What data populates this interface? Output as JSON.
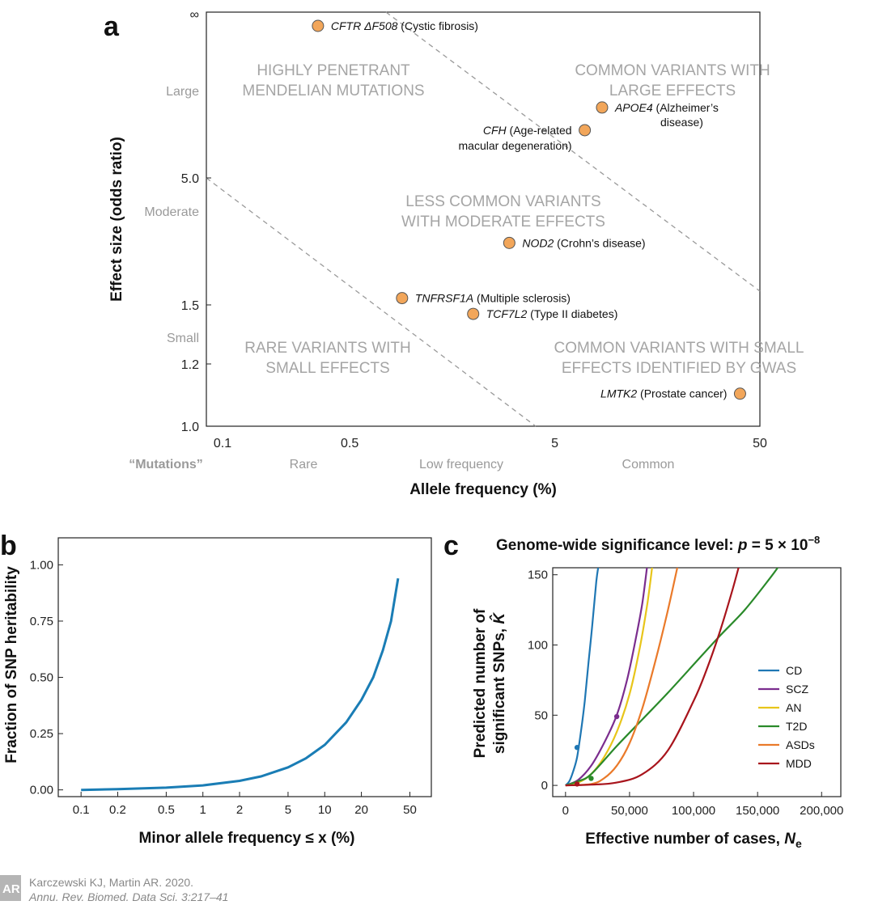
{
  "citation": {
    "line1": "Karczewski KJ, Martin AR. 2020.",
    "line2": "Annu. Rev. Biomed. Data Sci. 3:217–41",
    "logo": "AR"
  },
  "chart_data": [
    {
      "panel": "a",
      "type": "scatter",
      "xlabel": "Allele frequency (%)",
      "ylabel": "Effect size (odds ratio)",
      "x_scale": "log",
      "xlim": [
        0.1,
        50
      ],
      "x_ticks": [
        "0.1",
        "0.5",
        "5",
        "50"
      ],
      "y_ticks": [
        "∞",
        "5.0",
        "1.5",
        "1.2",
        "1.0"
      ],
      "y_categories": [
        "Large",
        "Moderate",
        "Small"
      ],
      "x_categories": [
        "“Mutations”",
        "Rare",
        "Low frequency",
        "Common"
      ],
      "regions": [
        {
          "lines": [
            "HIGHLY PENETRANT",
            "MENDELIAN MUTATIONS"
          ]
        },
        {
          "lines": [
            "COMMON VARIANTS WITH",
            "LARGE EFFECTS"
          ]
        },
        {
          "lines": [
            "LESS COMMON VARIANTS",
            "WITH MODERATE EFFECTS"
          ]
        },
        {
          "lines": [
            "RARE VARIANTS WITH",
            "SMALL EFFECTS"
          ]
        },
        {
          "lines": [
            "COMMON VARIANTS WITH SMALL",
            "EFFECTS IDENTIFIED BY GWAS"
          ]
        }
      ],
      "points": [
        {
          "gene": "CFTR ΔF508",
          "disease": " (Cystic fibrosis)",
          "x": 0.35,
          "y": "∞"
        },
        {
          "gene": "APOE4",
          "disease": " (Alzheimer’s",
          "disease2": "disease)",
          "x": 8.5,
          "y": 10
        },
        {
          "gene": "CFH",
          "disease": " (Age-related",
          "disease2": "macular degeneration)",
          "x": 7.0,
          "y": 8
        },
        {
          "gene": "NOD2",
          "disease": " (Crohn’s disease)",
          "x": 3.0,
          "y": 2.7
        },
        {
          "gene": "TNFRSF1A",
          "disease": " (Multiple sclerosis)",
          "x": 0.9,
          "y": 1.6
        },
        {
          "gene": "TCF7L2",
          "disease": " (Type II diabetes)",
          "x": 2.0,
          "y": 1.45
        },
        {
          "gene": "LMTK2",
          "disease": " (Prostate cancer)",
          "x": 40,
          "y": 1.1
        }
      ],
      "point_color": "#f2a65a"
    },
    {
      "panel": "b",
      "type": "line",
      "xlabel": "Minor allele frequency ≤ x (%)",
      "ylabel": "Fraction of SNP heritability",
      "x_scale": "log",
      "x_ticks": [
        0.1,
        0.2,
        0.5,
        1,
        2,
        5,
        10,
        20,
        50
      ],
      "x_tick_labels": [
        "0.1",
        "0.2",
        "0.5",
        "1",
        "2",
        "5",
        "10",
        "20",
        "50"
      ],
      "y_ticks": [
        0,
        0.25,
        0.5,
        0.75,
        1.0
      ],
      "y_tick_labels": [
        "0.00",
        "0.25",
        "0.50",
        "0.75",
        "1.00"
      ],
      "ylim": [
        -0.03,
        1.12
      ],
      "series": [
        {
          "color": "#1a7db5",
          "x": [
            0.1,
            0.2,
            0.5,
            1,
            2,
            3,
            5,
            7,
            10,
            15,
            20,
            25,
            30,
            35,
            40
          ],
          "y": [
            0.0,
            0.003,
            0.01,
            0.02,
            0.04,
            0.06,
            0.1,
            0.14,
            0.2,
            0.3,
            0.4,
            0.5,
            0.62,
            0.75,
            0.94
          ]
        }
      ]
    },
    {
      "panel": "c",
      "type": "line",
      "title": "Genome-wide significance level: ",
      "title_p": "p",
      "title_value": " = 5 × 10",
      "title_exp": "−8",
      "xlabel": "Effective number of cases, ",
      "xlabel_symbol": "N",
      "xlabel_sub": "e",
      "ylabel_line1": "Predicted number of",
      "ylabel_line2": "significant SNPs, ",
      "ylabel_symbol": "K̂",
      "xlim": [
        -10000,
        215000
      ],
      "ylim": [
        -8,
        155
      ],
      "x_ticks": [
        0,
        50000,
        100000,
        150000,
        200000
      ],
      "x_tick_labels": [
        "0",
        "50,000",
        "100,000",
        "150,000",
        "200,000"
      ],
      "y_ticks": [
        0,
        50,
        100,
        150
      ],
      "y_tick_labels": [
        "0",
        "50",
        "100",
        "150"
      ],
      "series": [
        {
          "name": "CD",
          "color": "#1f77b4",
          "x": [
            0,
            3000,
            6000,
            9000,
            12000,
            15000,
            18000,
            21000,
            24000,
            26000
          ],
          "y": [
            0,
            3,
            10,
            20,
            38,
            60,
            88,
            115,
            145,
            158
          ],
          "marker": {
            "x": 9000,
            "y": 27
          }
        },
        {
          "name": "SCZ",
          "color": "#7b2d8e",
          "x": [
            0,
            10000,
            20000,
            30000,
            40000,
            48000,
            55000,
            60000,
            64000
          ],
          "y": [
            0,
            4,
            14,
            30,
            50,
            75,
            105,
            130,
            158
          ],
          "marker": {
            "x": 40000,
            "y": 49
          }
        },
        {
          "name": "AN",
          "color": "#e8c51a",
          "x": [
            0,
            10000,
            20000,
            30000,
            40000,
            50000,
            58000,
            64000,
            68000
          ],
          "y": [
            0,
            2,
            8,
            20,
            38,
            65,
            98,
            130,
            158
          ]
        },
        {
          "name": "T2D",
          "color": "#2a8a2a",
          "x": [
            0,
            10000,
            20000,
            40000,
            60000,
            80000,
            100000,
            120000,
            140000,
            160000,
            168000
          ],
          "y": [
            0,
            3,
            8,
            28,
            47,
            66,
            86,
            106,
            125,
            148,
            158
          ],
          "marker": {
            "x": 20000,
            "y": 5
          }
        },
        {
          "name": "ASDs",
          "color": "#ea7a2a",
          "x": [
            0,
            20000,
            30000,
            40000,
            50000,
            60000,
            70000,
            80000,
            88000
          ],
          "y": [
            0,
            1,
            5,
            14,
            30,
            55,
            88,
            125,
            158
          ]
        },
        {
          "name": "MDD",
          "color": "#a8141c",
          "x": [
            0,
            20000,
            40000,
            60000,
            80000,
            100000,
            110000,
            120000,
            130000,
            136000
          ],
          "y": [
            0,
            0.5,
            2,
            8,
            25,
            60,
            82,
            108,
            138,
            158
          ],
          "marker": {
            "x": 9000,
            "y": 1
          }
        }
      ],
      "legend": "right"
    }
  ]
}
